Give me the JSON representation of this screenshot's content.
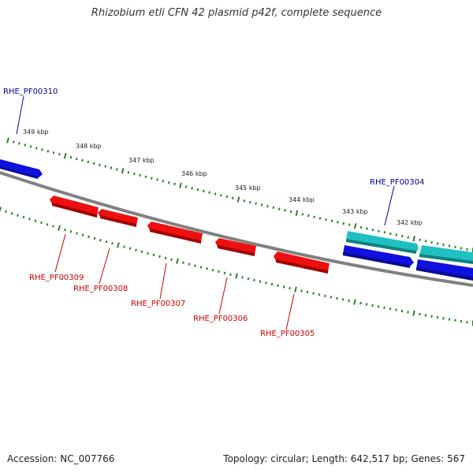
{
  "title": "Rhizobium etli CFN 42 plasmid p42f, complete sequence",
  "footer": {
    "accession": "Accession: NC_007766",
    "topology": "Topology: circular; Length: 642,517 bp; Genes: 567"
  },
  "colors": {
    "backbone": "#808080",
    "tick": "#2e7d2e",
    "gene_forward": "#1010e0",
    "gene_forward_alt": "#20c0c0",
    "gene_reverse": "#ee1010",
    "label_forward": "#00009a",
    "label_reverse": "#cc0000"
  },
  "scale_labels": [
    "349 kbp",
    "348 kbp",
    "347 kbp",
    "346 kbp",
    "345 kbp",
    "344 kbp",
    "343 kbp",
    "342 kbp"
  ],
  "genes": [
    {
      "label": "RHE_PF00310",
      "strand": "forward"
    },
    {
      "label": "RHE_PF00304",
      "strand": "forward"
    },
    {
      "label": "RHE_PF00309",
      "strand": "reverse"
    },
    {
      "label": "RHE_PF00308",
      "strand": "reverse"
    },
    {
      "label": "RHE_PF00307",
      "strand": "reverse"
    },
    {
      "label": "RHE_PF00306",
      "strand": "reverse"
    },
    {
      "label": "RHE_PF00305",
      "strand": "reverse"
    }
  ]
}
